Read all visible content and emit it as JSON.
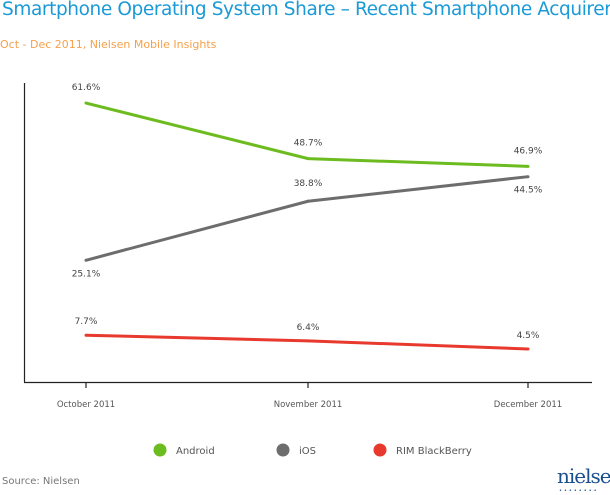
{
  "chart_data": {
    "type": "line",
    "title": "Smartphone Operating System Share – Recent Smartphone Acquirers",
    "subtitle": "Oct - Dec 2011, Nielsen Mobile Insights",
    "categories": [
      "October 2011",
      "November 2011",
      "December 2011"
    ],
    "series": [
      {
        "name": "Android",
        "values": [
          61.6,
          48.7,
          46.9
        ],
        "labels": [
          "61.6%",
          "48.7%",
          "46.9%"
        ],
        "color": "#6cbb1f"
      },
      {
        "name": "iOS",
        "values": [
          25.1,
          38.8,
          44.5
        ],
        "labels": [
          "25.1%",
          "38.8%",
          "44.5%"
        ],
        "color": "#6d6d6d"
      },
      {
        "name": "RIM BlackBerry",
        "values": [
          7.7,
          6.4,
          4.5
        ],
        "labels": [
          "7.7%",
          "6.4%",
          "4.5%"
        ],
        "color": "#e8392e"
      }
    ],
    "xlabel": "",
    "ylabel": "",
    "grid": false,
    "legend_position": "bottom"
  },
  "footer": {
    "source": "Source: Nielsen",
    "logo": "nielsen"
  }
}
